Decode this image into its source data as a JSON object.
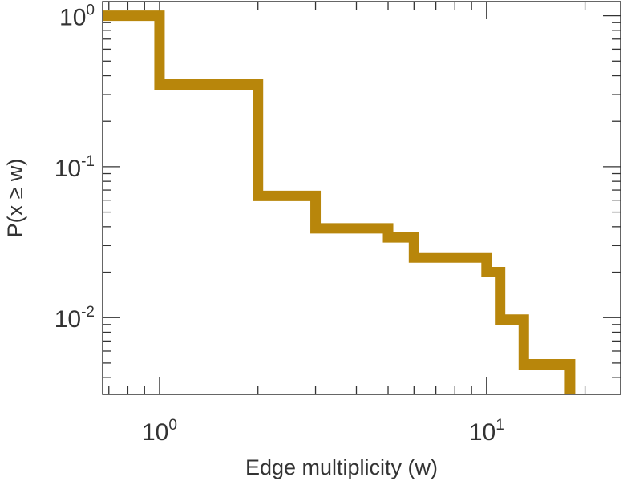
{
  "chart_data": {
    "type": "line",
    "line_style": "step",
    "xlabel": "Edge multiplicity (w)",
    "ylabel": "P(x ≥ w)",
    "xscale": "log",
    "yscale": "log",
    "xlim": [
      0.67,
      25.7
    ],
    "ylim": [
      0.0031,
      1.24
    ],
    "grid": false,
    "x_ticks": [
      {
        "base": "10",
        "exp": "0",
        "value": 1
      },
      {
        "base": "10",
        "exp": "1",
        "value": 10
      }
    ],
    "y_ticks": [
      {
        "base": "10",
        "exp": "0",
        "value": 1
      },
      {
        "base": "10",
        "exp": "-1",
        "value": 0.1
      },
      {
        "base": "10",
        "exp": "-2",
        "value": 0.01
      }
    ],
    "series": [
      {
        "color": "#b8860b",
        "x": [
          1,
          2,
          3,
          5,
          6,
          10,
          11,
          13,
          18
        ],
        "y": [
          1.0,
          0.35,
          0.064,
          0.039,
          0.034,
          0.025,
          0.02,
          0.0097,
          0.0049
        ]
      }
    ]
  }
}
